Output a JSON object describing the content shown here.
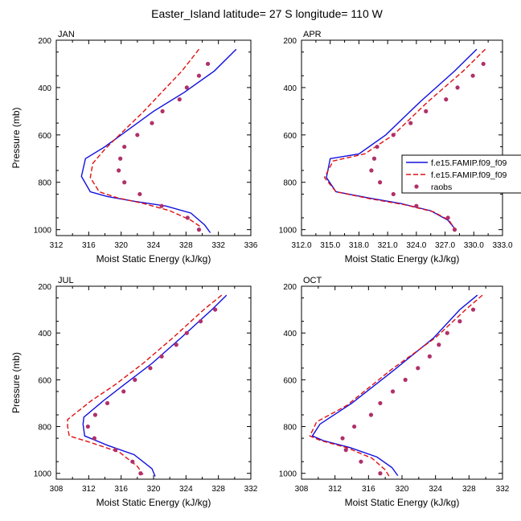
{
  "figure": {
    "title": "Easter_Island  latitude= 27 S longitude= 110 W"
  },
  "legend": {
    "entries": [
      "f.e15.FAMIP.f09_f09",
      "f.e15.FAMIP.f09_f09",
      "raobs"
    ]
  },
  "colors": {
    "model_a": "#1010e0",
    "model_b": "#e01010",
    "obs": "#b0306a"
  },
  "chart_data": [
    {
      "type": "line",
      "panel": "JAN",
      "title": "JAN",
      "xlabel": "Moist Static Energy (kJ/kg)",
      "ylabel": "Pressure (mb)",
      "xlim": [
        312,
        336
      ],
      "ylim": [
        200,
        1025
      ],
      "y_inverted": true,
      "xticks": [
        312,
        316,
        320,
        324,
        328,
        332,
        336
      ],
      "xtick_labels": [
        "312",
        "316",
        "320",
        "324",
        "328",
        "332",
        "336"
      ],
      "yticks": [
        200,
        400,
        600,
        800,
        1000
      ],
      "ytick_labels": [
        "200",
        "400",
        "600",
        "800",
        "1000"
      ],
      "series": [
        {
          "name": "f.e15.FAMIP.f09_f09",
          "style": "solid",
          "color": "#1010e0",
          "x": [
            334.2,
            331.5,
            327.8,
            324.0,
            320.8,
            318.0,
            315.6,
            315.1,
            316.2,
            318.3,
            321.6,
            325.5,
            328.6,
            330.3,
            331.0
          ],
          "y": [
            238,
            330,
            420,
            500,
            580,
            650,
            700,
            775,
            840,
            860,
            880,
            900,
            930,
            980,
            1013
          ]
        },
        {
          "name": "f.e15.FAMIP.f09_f09",
          "style": "dashed",
          "color": "#e01010",
          "x": [
            329.6,
            327.5,
            325.0,
            322.8,
            320.4,
            318.0,
            316.5,
            316.2,
            317.3,
            319.5,
            322.8,
            326.0,
            328.6,
            329.9
          ],
          "y": [
            238,
            330,
            420,
            500,
            580,
            660,
            720,
            780,
            840,
            865,
            890,
            920,
            960,
            990
          ]
        },
        {
          "name": "raobs",
          "style": "dots",
          "color": "#b0306a",
          "x": [
            330.7,
            329.6,
            328.1,
            327.2,
            325.1,
            323.8,
            322.0,
            320.4,
            319.9,
            319.7,
            320.4,
            322.3,
            325.0,
            328.2,
            329.6
          ],
          "y": [
            300,
            350,
            400,
            450,
            500,
            550,
            600,
            650,
            700,
            750,
            800,
            850,
            900,
            950,
            1000
          ]
        }
      ]
    },
    {
      "type": "line",
      "panel": "APR",
      "title": "APR",
      "xlabel": "Moist Static Energy (kJ/kg)",
      "ylabel": "",
      "xlim": [
        312,
        333
      ],
      "ylim": [
        200,
        1025
      ],
      "y_inverted": true,
      "xticks": [
        312,
        315,
        318,
        321,
        324,
        327,
        330,
        333
      ],
      "xtick_labels": [
        "312.0",
        "315.0",
        "318.0",
        "321.0",
        "324.0",
        "327.0",
        "330.0",
        "333.0"
      ],
      "yticks": [
        200,
        400,
        600,
        800,
        1000
      ],
      "ytick_labels": [
        "200",
        "400",
        "600",
        "800",
        "1000"
      ],
      "series": [
        {
          "name": "f.e15.FAMIP.f09_f09",
          "style": "solid",
          "color": "#1010e0",
          "x": [
            330.3,
            328.0,
            324.4,
            320.8,
            318.0,
            315.0,
            314.6,
            315.6,
            318.9,
            322.4,
            325.5,
            327.3,
            328.0
          ],
          "y": [
            238,
            330,
            460,
            600,
            680,
            700,
            780,
            840,
            865,
            890,
            920,
            960,
            995
          ]
        },
        {
          "name": "f.e15.FAMIP.f09_f09",
          "style": "dashed",
          "color": "#e01010",
          "x": [
            331.2,
            328.9,
            325.2,
            321.6,
            318.6,
            315.3,
            314.4,
            315.6,
            319.2,
            322.8,
            325.8,
            327.4,
            328.0
          ],
          "y": [
            238,
            330,
            460,
            600,
            680,
            710,
            780,
            840,
            870,
            895,
            925,
            960,
            995
          ]
        },
        {
          "name": "raobs",
          "style": "dots",
          "color": "#b0306a",
          "x": [
            331.0,
            329.9,
            328.3,
            327.1,
            325.0,
            323.4,
            321.6,
            319.9,
            319.6,
            319.3,
            320.2,
            321.6,
            324.0,
            327.3,
            328.0
          ],
          "y": [
            300,
            350,
            400,
            450,
            500,
            550,
            600,
            650,
            700,
            750,
            800,
            850,
            900,
            950,
            1000
          ]
        }
      ]
    },
    {
      "type": "line",
      "panel": "JUL",
      "title": "JUL",
      "xlabel": "Moist Static Energy (kJ/kg)",
      "ylabel": "Pressure (mb)",
      "xlim": [
        308,
        332
      ],
      "ylim": [
        200,
        1025
      ],
      "y_inverted": true,
      "xticks": [
        308,
        312,
        316,
        320,
        324,
        328,
        332
      ],
      "xtick_labels": [
        "308",
        "312",
        "316",
        "320",
        "324",
        "328",
        "332"
      ],
      "yticks": [
        200,
        400,
        600,
        800,
        1000
      ],
      "ytick_labels": [
        "200",
        "400",
        "600",
        "800",
        "1000"
      ],
      "series": [
        {
          "name": "f.e15.FAMIP.f09_f09",
          "style": "solid",
          "color": "#1010e0",
          "x": [
            329.0,
            327.2,
            323.4,
            319.8,
            316.4,
            313.8,
            311.4,
            311.3,
            311.5,
            314.3,
            317.6,
            319.8,
            320.2
          ],
          "y": [
            238,
            300,
            420,
            530,
            620,
            690,
            760,
            790,
            840,
            880,
            920,
            980,
            1013
          ]
        },
        {
          "name": "f.e15.FAMIP.f09_f09",
          "style": "dashed",
          "color": "#e01010",
          "x": [
            328.4,
            326.2,
            322.4,
            318.7,
            315.3,
            312.3,
            309.4,
            309.4,
            309.6,
            312.4,
            315.8,
            318.0,
            318.7
          ],
          "y": [
            238,
            300,
            420,
            530,
            620,
            690,
            770,
            800,
            840,
            870,
            910,
            970,
            1005
          ]
        },
        {
          "name": "raobs",
          "style": "dots",
          "color": "#b0306a",
          "x": [
            327.6,
            325.8,
            324.1,
            322.8,
            321.0,
            319.6,
            317.7,
            316.3,
            314.3,
            312.8,
            311.9,
            312.7,
            315.3,
            317.4,
            318.4
          ],
          "y": [
            300,
            350,
            400,
            450,
            500,
            550,
            600,
            650,
            700,
            750,
            800,
            850,
            900,
            950,
            1000
          ]
        }
      ]
    },
    {
      "type": "line",
      "panel": "OCT",
      "title": "OCT",
      "xlabel": "Moist Static Energy (kJ/kg)",
      "ylabel": "",
      "xlim": [
        308,
        332
      ],
      "ylim": [
        200,
        1025
      ],
      "y_inverted": true,
      "xticks": [
        308,
        312,
        316,
        320,
        324,
        328,
        332
      ],
      "xtick_labels": [
        "308",
        "312",
        "316",
        "320",
        "324",
        "328",
        "332"
      ],
      "yticks": [
        200,
        400,
        600,
        800,
        1000
      ],
      "ytick_labels": [
        "200",
        "400",
        "600",
        "800",
        "1000"
      ],
      "series": [
        {
          "name": "f.e15.FAMIP.f09_f09",
          "style": "solid",
          "color": "#1010e0",
          "x": [
            329.0,
            326.9,
            323.8,
            319.0,
            314.0,
            310.2,
            309.3,
            310.6,
            313.8,
            317.0,
            318.8,
            319.5
          ],
          "y": [
            238,
            300,
            420,
            560,
            700,
            790,
            840,
            860,
            890,
            930,
            975,
            1010
          ]
        },
        {
          "name": "f.e15.FAMIP.f09_f09",
          "style": "dashed",
          "color": "#e01010",
          "x": [
            329.6,
            327.6,
            324.0,
            318.6,
            313.4,
            309.8,
            309.0,
            310.3,
            313.4,
            316.4,
            318.0,
            318.5
          ],
          "y": [
            238,
            300,
            420,
            560,
            710,
            780,
            840,
            860,
            890,
            935,
            985,
            1015
          ]
        },
        {
          "name": "raobs",
          "style": "dots",
          "color": "#b0306a",
          "x": [
            328.5,
            326.9,
            325.4,
            324.4,
            323.3,
            321.9,
            320.4,
            318.9,
            317.4,
            316.3,
            314.3,
            312.9,
            313.3,
            315.1,
            317.4
          ],
          "y": [
            300,
            350,
            400,
            450,
            500,
            550,
            600,
            650,
            700,
            750,
            800,
            850,
            900,
            950,
            1000
          ]
        }
      ]
    }
  ]
}
